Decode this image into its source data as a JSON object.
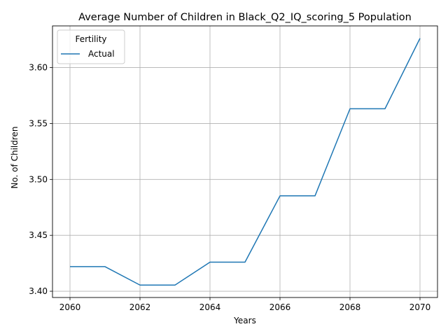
{
  "chart_data": {
    "type": "line",
    "title": "Average Number of Children in Black_Q2_IQ_scoring_5 Population",
    "xlabel": "Years",
    "ylabel": "No. of Children",
    "x": [
      2060,
      2061,
      2062,
      2063,
      2064,
      2065,
      2066,
      2067,
      2068,
      2069,
      2070
    ],
    "series": [
      {
        "name": "Actual",
        "color": "#1f77b4",
        "values": [
          3.422,
          3.422,
          3.4055,
          3.4055,
          3.426,
          3.426,
          3.4853,
          3.4853,
          3.5632,
          3.5632,
          3.6262
        ]
      }
    ],
    "xlim": [
      2059.5,
      2070.5
    ],
    "ylim": [
      3.3944,
      3.6373
    ],
    "xticks": [
      "2060",
      "2062",
      "2064",
      "2066",
      "2068",
      "2070"
    ],
    "xtick_values": [
      2060,
      2062,
      2064,
      2066,
      2068,
      2070
    ],
    "yticks": [
      "3.40",
      "3.45",
      "3.50",
      "3.55",
      "3.60"
    ],
    "ytick_values": [
      3.4,
      3.45,
      3.5,
      3.55,
      3.6
    ],
    "grid": true,
    "legend": {
      "title": "Fertility",
      "placement": "top-left"
    }
  }
}
